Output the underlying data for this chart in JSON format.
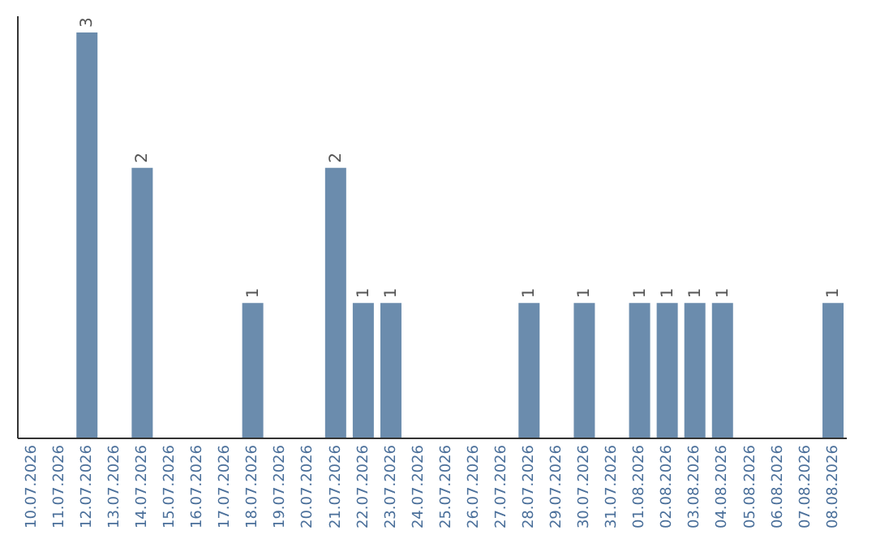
{
  "chart_data": {
    "type": "bar",
    "categories": [
      "10.07.2026",
      "11.07.2026",
      "12.07.2026",
      "13.07.2026",
      "14.07.2026",
      "15.07.2026",
      "16.07.2026",
      "17.07.2026",
      "18.07.2026",
      "19.07.2026",
      "20.07.2026",
      "21.07.2026",
      "22.07.2026",
      "23.07.2026",
      "24.07.2026",
      "25.07.2026",
      "26.07.2026",
      "27.07.2026",
      "28.07.2026",
      "29.07.2026",
      "30.07.2026",
      "31.07.2026",
      "01.08.2026",
      "02.08.2026",
      "03.08.2026",
      "04.08.2026",
      "05.08.2026",
      "06.08.2026",
      "07.08.2026",
      "08.08.2026"
    ],
    "values": [
      0,
      0,
      3,
      0,
      2,
      0,
      0,
      0,
      1,
      0,
      0,
      2,
      1,
      1,
      0,
      0,
      0,
      0,
      1,
      0,
      1,
      0,
      1,
      1,
      1,
      1,
      0,
      0,
      0,
      1
    ],
    "value_labels": [
      null,
      null,
      "3",
      null,
      "2",
      null,
      null,
      null,
      "1",
      null,
      null,
      "2",
      "1",
      "1",
      null,
      null,
      null,
      null,
      "1",
      null,
      "1",
      null,
      "1",
      "1",
      "1",
      "1",
      null,
      null,
      null,
      "1"
    ],
    "color": "#6b8cad",
    "ylim": [
      0,
      3.12
    ],
    "tick_labels": "x",
    "grid": false,
    "legend": false
  }
}
